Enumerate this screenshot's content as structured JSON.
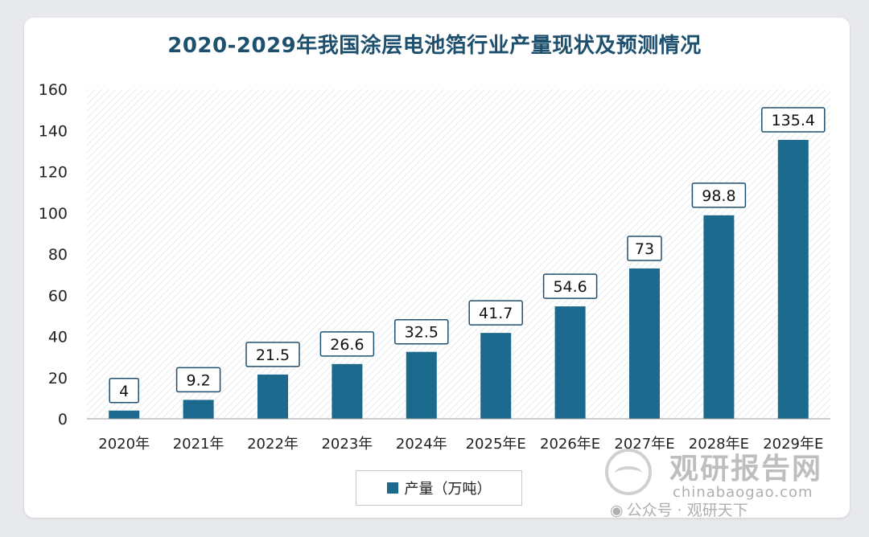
{
  "chart_data": {
    "type": "bar",
    "title": "2020-2029年我国涂层电池箔行业产量现状及预测情况",
    "categories": [
      "2020年",
      "2021年",
      "2022年",
      "2023年",
      "2024年",
      "2025年E",
      "2026年E",
      "2027年E",
      "2028年E",
      "2029年E"
    ],
    "series": [
      {
        "name": "产量（万吨）",
        "values": [
          4,
          9.2,
          21.5,
          26.6,
          32.5,
          41.7,
          54.6,
          73,
          98.8,
          135.4
        ],
        "color": "#1b6a8e"
      }
    ],
    "data_labels": [
      "4",
      "9.2",
      "21.5",
      "26.6",
      "32.5",
      "41.7",
      "54.6",
      "73",
      "98.8",
      "135.4"
    ],
    "y_ticks": [
      "0",
      "20",
      "40",
      "60",
      "80",
      "100",
      "120",
      "140",
      "160"
    ],
    "ylim": [
      0,
      160
    ],
    "xlabel": "",
    "ylabel": "",
    "legend_position": "bottom"
  },
  "watermark": {
    "brand": "观研报告网",
    "domain": "chinabaogao.com",
    "account": "公众号 · 观研天下"
  },
  "colors": {
    "bar": "#1b6a8e",
    "title": "#1d4f6e",
    "label_border": "#1d4f6e"
  }
}
